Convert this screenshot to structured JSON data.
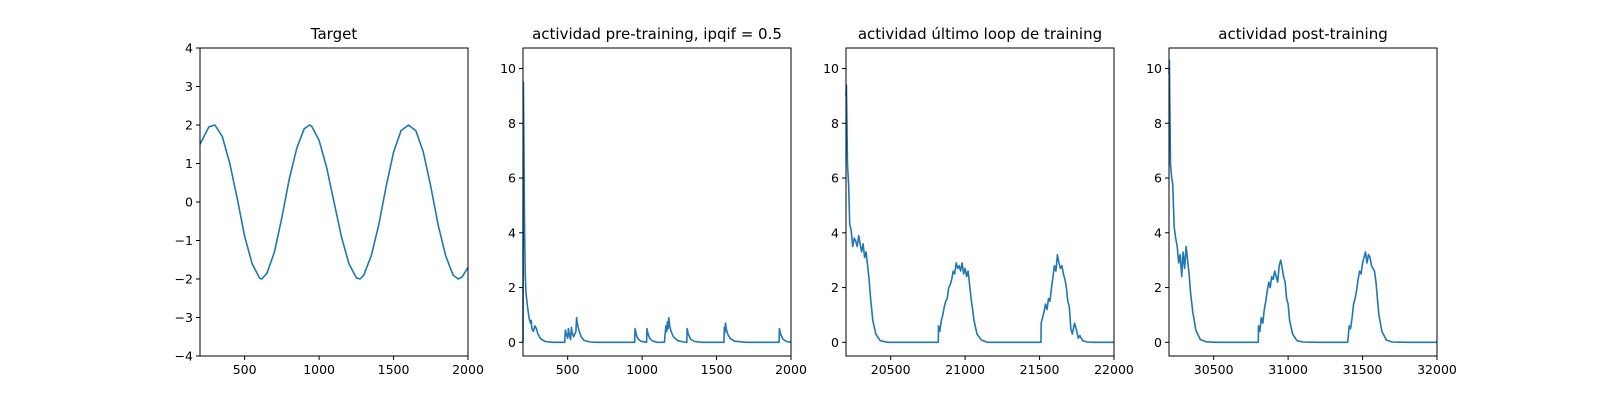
{
  "colors": {
    "series": "#1f77b4"
  },
  "chart_data": [
    {
      "type": "line",
      "title": "Target",
      "xlabel": "",
      "ylabel": "",
      "xlim": [
        200,
        2000
      ],
      "ylim": [
        -4,
        4
      ],
      "xticks": [
        500,
        1000,
        1500,
        2000
      ],
      "yticks": [
        -4,
        -3,
        -2,
        -1,
        0,
        1,
        2,
        3,
        4
      ],
      "grid": false,
      "series": [
        {
          "x": [
            200,
            260,
            300,
            350,
            400,
            450,
            500,
            550,
            600,
            615,
            650,
            700,
            750,
            800,
            850,
            900,
            935,
            950,
            1000,
            1050,
            1100,
            1150,
            1200,
            1250,
            1275,
            1300,
            1350,
            1400,
            1450,
            1500,
            1550,
            1600,
            1650,
            1700,
            1750,
            1800,
            1850,
            1900,
            1935,
            1960,
            2000
          ],
          "y": [
            1.5,
            1.95,
            2.0,
            1.7,
            1.0,
            0.1,
            -0.9,
            -1.6,
            -1.98,
            -2.0,
            -1.85,
            -1.3,
            -0.4,
            0.6,
            1.4,
            1.9,
            2.0,
            1.97,
            1.6,
            0.9,
            0.0,
            -0.9,
            -1.6,
            -1.97,
            -2.0,
            -1.9,
            -1.4,
            -0.6,
            0.4,
            1.3,
            1.85,
            2.0,
            1.85,
            1.3,
            0.4,
            -0.6,
            -1.4,
            -1.9,
            -2.0,
            -1.95,
            -1.7
          ]
        }
      ]
    },
    {
      "type": "line",
      "title": "actividad pre-training, ipqif = 0.5",
      "xlabel": "",
      "ylabel": "",
      "xlim": [
        200,
        2000
      ],
      "ylim": [
        -0.5,
        10.75
      ],
      "xticks": [
        500,
        1000,
        1500,
        2000
      ],
      "yticks": [
        0,
        2,
        4,
        6,
        8,
        10
      ],
      "grid": false,
      "series": [
        {
          "x": [
            200,
            203,
            210,
            215,
            220,
            230,
            240,
            250,
            255,
            260,
            270,
            280,
            290,
            300,
            320,
            350,
            400,
            480,
            485,
            490,
            500,
            505,
            510,
            520,
            525,
            530,
            540,
            555,
            560,
            565,
            575,
            590,
            610,
            650,
            700,
            800,
            950,
            952,
            960,
            970,
            990,
            1030,
            1033,
            1040,
            1050,
            1070,
            1100,
            1150,
            1160,
            1165,
            1170,
            1175,
            1180,
            1185,
            1195,
            1210,
            1240,
            1280,
            1300,
            1302,
            1310,
            1325,
            1350,
            1400,
            1500,
            1550,
            1552,
            1556,
            1560,
            1565,
            1575,
            1590,
            1620,
            1700,
            1800,
            1900,
            1920,
            1922,
            1930,
            1945,
            1970,
            2000
          ],
          "y": [
            0.0,
            9.5,
            4.5,
            2.5,
            1.8,
            1.3,
            0.9,
            0.7,
            0.8,
            0.5,
            0.4,
            0.6,
            0.5,
            0.3,
            0.12,
            0.03,
            0.0,
            0.0,
            0.45,
            0.3,
            0.15,
            0.5,
            0.3,
            0.1,
            0.55,
            0.35,
            0.2,
            0.4,
            0.9,
            0.7,
            0.45,
            0.2,
            0.07,
            0.01,
            0.0,
            0.0,
            0.0,
            0.5,
            0.3,
            0.15,
            0.04,
            0.0,
            0.5,
            0.3,
            0.15,
            0.05,
            0.0,
            0.0,
            0.6,
            0.4,
            0.75,
            0.5,
            0.9,
            0.6,
            0.4,
            0.2,
            0.06,
            0.01,
            0.0,
            0.5,
            0.3,
            0.12,
            0.03,
            0.0,
            0.0,
            0.0,
            0.55,
            0.35,
            0.7,
            0.5,
            0.3,
            0.15,
            0.04,
            0.0,
            0.0,
            0.0,
            0.0,
            0.5,
            0.3,
            0.12,
            0.03,
            0.0
          ]
        }
      ]
    },
    {
      "type": "line",
      "title": "actividad último loop de training",
      "xlabel": "",
      "ylabel": "",
      "xlim": [
        20200,
        22000
      ],
      "ylim": [
        -0.5,
        10.75
      ],
      "xticks": [
        20500,
        21000,
        21500,
        22000
      ],
      "yticks": [
        0,
        2,
        4,
        6,
        8,
        10
      ],
      "grid": false,
      "series": [
        {
          "x": [
            20200,
            20203,
            20210,
            20218,
            20225,
            20235,
            20245,
            20255,
            20265,
            20275,
            20285,
            20295,
            20305,
            20315,
            20325,
            20335,
            20345,
            20355,
            20365,
            20380,
            20400,
            20430,
            20480,
            20600,
            20800,
            20820,
            20821,
            20830,
            20840,
            20850,
            20860,
            20870,
            20880,
            20890,
            20900,
            20910,
            20920,
            20930,
            20940,
            20950,
            20960,
            20970,
            20980,
            20990,
            21000,
            21010,
            21020,
            21030,
            21040,
            21050,
            21060,
            21080,
            21110,
            21150,
            21250,
            21400,
            21500,
            21510,
            21511,
            21520,
            21530,
            21540,
            21550,
            21560,
            21570,
            21580,
            21590,
            21600,
            21610,
            21620,
            21630,
            21640,
            21650,
            21660,
            21670,
            21680,
            21690,
            21700,
            21710,
            21720,
            21735,
            21750,
            21760,
            21770,
            21790,
            21820,
            21860,
            21950,
            22000
          ],
          "y": [
            9.0,
            9.4,
            6.5,
            5.7,
            4.3,
            4.1,
            3.5,
            3.8,
            3.7,
            3.5,
            3.9,
            3.6,
            3.3,
            3.6,
            3.1,
            3.3,
            2.8,
            2.3,
            1.6,
            0.8,
            0.3,
            0.06,
            0.0,
            0.0,
            0.0,
            0.0,
            0.6,
            0.4,
            0.8,
            1.0,
            1.3,
            1.5,
            1.6,
            2.0,
            2.1,
            2.3,
            2.6,
            2.5,
            2.9,
            2.7,
            2.8,
            2.6,
            2.9,
            2.5,
            2.7,
            2.4,
            2.6,
            2.1,
            1.6,
            1.2,
            0.8,
            0.3,
            0.08,
            0.0,
            0.0,
            0.0,
            0.0,
            0.0,
            0.7,
            0.9,
            1.1,
            1.4,
            1.2,
            1.6,
            1.5,
            2.0,
            2.4,
            2.8,
            2.6,
            3.2,
            2.9,
            2.7,
            2.8,
            2.5,
            2.3,
            2.0,
            1.5,
            1.3,
            0.5,
            0.3,
            0.7,
            0.4,
            0.15,
            0.25,
            0.06,
            0.01,
            0.0,
            0.0,
            0.0
          ]
        }
      ]
    },
    {
      "type": "line",
      "title": "actividad post-training",
      "xlabel": "",
      "ylabel": "",
      "xlim": [
        30200,
        32000
      ],
      "ylim": [
        -0.5,
        10.75
      ],
      "xticks": [
        30500,
        31000,
        31500,
        32000
      ],
      "yticks": [
        0,
        2,
        4,
        6,
        8,
        10
      ],
      "grid": false,
      "series": [
        {
          "x": [
            30200,
            30203,
            30210,
            30218,
            30225,
            30235,
            30245,
            30255,
            30265,
            30275,
            30285,
            30295,
            30305,
            30315,
            30325,
            30335,
            30345,
            30360,
            30380,
            30410,
            30450,
            30520,
            30600,
            30800,
            30801,
            30810,
            30820,
            30830,
            30840,
            30850,
            30860,
            30870,
            30880,
            30890,
            30900,
            30910,
            30920,
            30930,
            30940,
            30950,
            30960,
            30970,
            30980,
            30990,
            31000,
            31010,
            31030,
            31060,
            31100,
            31200,
            31300,
            31400,
            31410,
            31420,
            31430,
            31440,
            31450,
            31460,
            31470,
            31480,
            31490,
            31500,
            31510,
            31520,
            31530,
            31540,
            31550,
            31560,
            31570,
            31580,
            31590,
            31600,
            31610,
            31630,
            31660,
            31700,
            31800,
            32000
          ],
          "y": [
            9.8,
            10.3,
            6.5,
            6.0,
            5.8,
            4.2,
            3.8,
            3.5,
            2.9,
            3.2,
            2.4,
            3.3,
            2.7,
            3.5,
            3.0,
            2.5,
            1.8,
            1.1,
            0.45,
            0.1,
            0.02,
            0.0,
            0.0,
            0.0,
            0.6,
            0.4,
            0.9,
            0.7,
            1.2,
            1.5,
            1.9,
            2.2,
            2.0,
            2.4,
            2.3,
            2.6,
            2.4,
            2.2,
            2.8,
            3.0,
            2.7,
            2.4,
            2.2,
            1.6,
            1.4,
            0.8,
            0.3,
            0.06,
            0.01,
            0.0,
            0.0,
            0.0,
            0.6,
            0.5,
            0.9,
            1.4,
            1.6,
            1.9,
            2.3,
            2.6,
            2.5,
            2.9,
            3.1,
            3.3,
            2.9,
            3.2,
            3.1,
            2.8,
            2.7,
            2.6,
            2.2,
            1.6,
            1.0,
            0.4,
            0.08,
            0.01,
            0.0,
            0.0
          ]
        }
      ]
    }
  ]
}
